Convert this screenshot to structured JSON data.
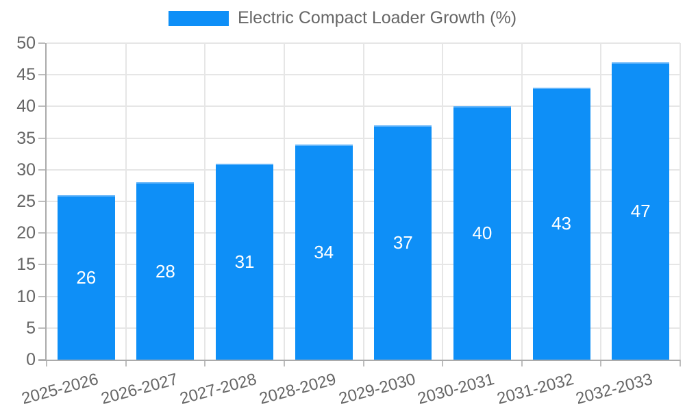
{
  "chart_data": {
    "type": "bar",
    "title": "Electric Compact Loader Growth (%)",
    "legend_position": "top",
    "categories": [
      "2025-2026",
      "2026-2027",
      "2027-2028",
      "2028-2029",
      "2029-2030",
      "2030-2031",
      "2031-2032",
      "2032-2033"
    ],
    "values": [
      26,
      28,
      31,
      34,
      37,
      40,
      43,
      47
    ],
    "value_labels": [
      "26",
      "28",
      "31",
      "34",
      "37",
      "40",
      "43",
      "47"
    ],
    "xlabel": "",
    "ylabel": "",
    "ylim": [
      0,
      50
    ],
    "ytick_step": 5,
    "grid": true,
    "colors": {
      "bar": "#0e8ff7",
      "bar_top_edge": "#64b5f9",
      "value_label": "#ffffff",
      "axis_text": "#666666",
      "grid_line": "#e6e6e6",
      "axis_line": "#ababab",
      "tick_mark": "#bdbdbd",
      "background": "#ffffff"
    }
  }
}
